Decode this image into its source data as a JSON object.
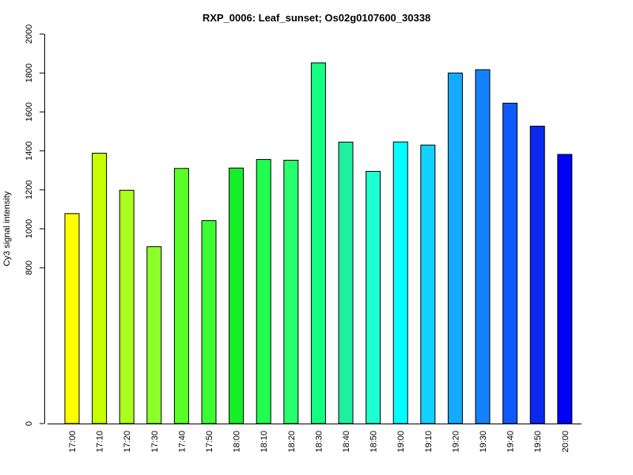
{
  "chart_data": {
    "type": "bar",
    "title": "RXP_0006: Leaf_sunset; Os02g0107600_30338",
    "xlabel": "",
    "ylabel": "Cy3 signal intensity",
    "ylim": [
      0,
      2000
    ],
    "yticks": [
      0,
      800,
      1000,
      1200,
      1400,
      1600,
      1800,
      2000
    ],
    "categories": [
      "17:00",
      "17:10",
      "17:20",
      "17:30",
      "17:40",
      "17:50",
      "18:00",
      "18:10",
      "18:20",
      "18:30",
      "18:40",
      "18:50",
      "19:00",
      "19:10",
      "19:20",
      "19:30",
      "19:40",
      "19:50",
      "20:00"
    ],
    "values": [
      1078,
      1388,
      1198,
      908,
      1310,
      1042,
      1312,
      1356,
      1352,
      1852,
      1445,
      1295,
      1446,
      1430,
      1800,
      1817,
      1645,
      1527,
      1382
    ],
    "colors": [
      "#FFFF00",
      "#C8FF00",
      "#AAFF1C",
      "#8CFF2A",
      "#5AFF28",
      "#3CFF32",
      "#14F028",
      "#1EFF50",
      "#28FF6E",
      "#14FF82",
      "#1EF0A0",
      "#1EFFD2",
      "#00FFFF",
      "#14D2FF",
      "#14AAFF",
      "#1482FF",
      "#0F5AFF",
      "#0A28F0",
      "#0000FF"
    ],
    "grid": false,
    "legend": "none"
  }
}
